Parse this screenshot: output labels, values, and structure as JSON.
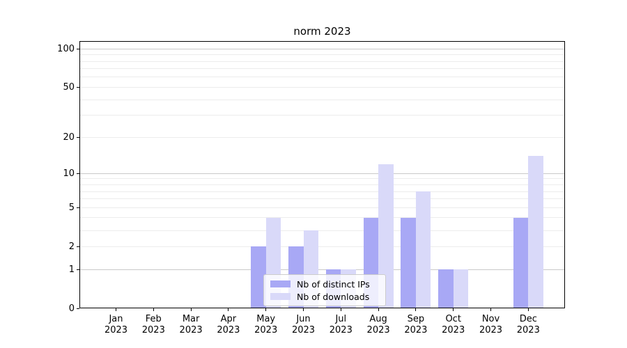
{
  "figure_title": "norm 2023",
  "colors": {
    "background": "#ffffff",
    "distinct_ips_bar": "#a8a8f5",
    "downloads_bar": "#d9d9f9",
    "grid_minor": "#ececec",
    "grid_major": "#c9c9c9",
    "axis_line": "#000000",
    "legend_border": "#cccccc"
  },
  "chart_data": {
    "type": "bar",
    "title": "norm 2023",
    "categories": [
      "Jan",
      "Feb",
      "Mar",
      "Apr",
      "May",
      "Jun",
      "Jul",
      "Aug",
      "Sep",
      "Oct",
      "Nov",
      "Dec"
    ],
    "year_label": "2023",
    "series": [
      {
        "name": "Nb of distinct IPs",
        "color": "#a8a8f5",
        "values": [
          0,
          0,
          0,
          0,
          2,
          2,
          1,
          4,
          4,
          1,
          0,
          4
        ]
      },
      {
        "name": "Nb of downloads",
        "color": "#d9d9f9",
        "values": [
          0,
          0,
          0,
          0,
          4,
          3,
          1,
          12,
          7,
          1,
          0,
          14
        ]
      }
    ],
    "xlabel": "",
    "ylabel": "",
    "yscale": "log1p",
    "ylim": [
      0,
      115
    ],
    "yticks": [
      0,
      1,
      2,
      5,
      10,
      20,
      50,
      100
    ],
    "ytick_labels": [
      "0",
      "1",
      "2",
      "5",
      "10",
      "20",
      "50",
      "100"
    ],
    "minor_gridlines": [
      2,
      3,
      4,
      5,
      6,
      7,
      8,
      9,
      20,
      30,
      40,
      50,
      60,
      70,
      80,
      90
    ],
    "major_gridlines": [
      1,
      10,
      100
    ],
    "grid": true,
    "legend_position": "lower center inside"
  }
}
